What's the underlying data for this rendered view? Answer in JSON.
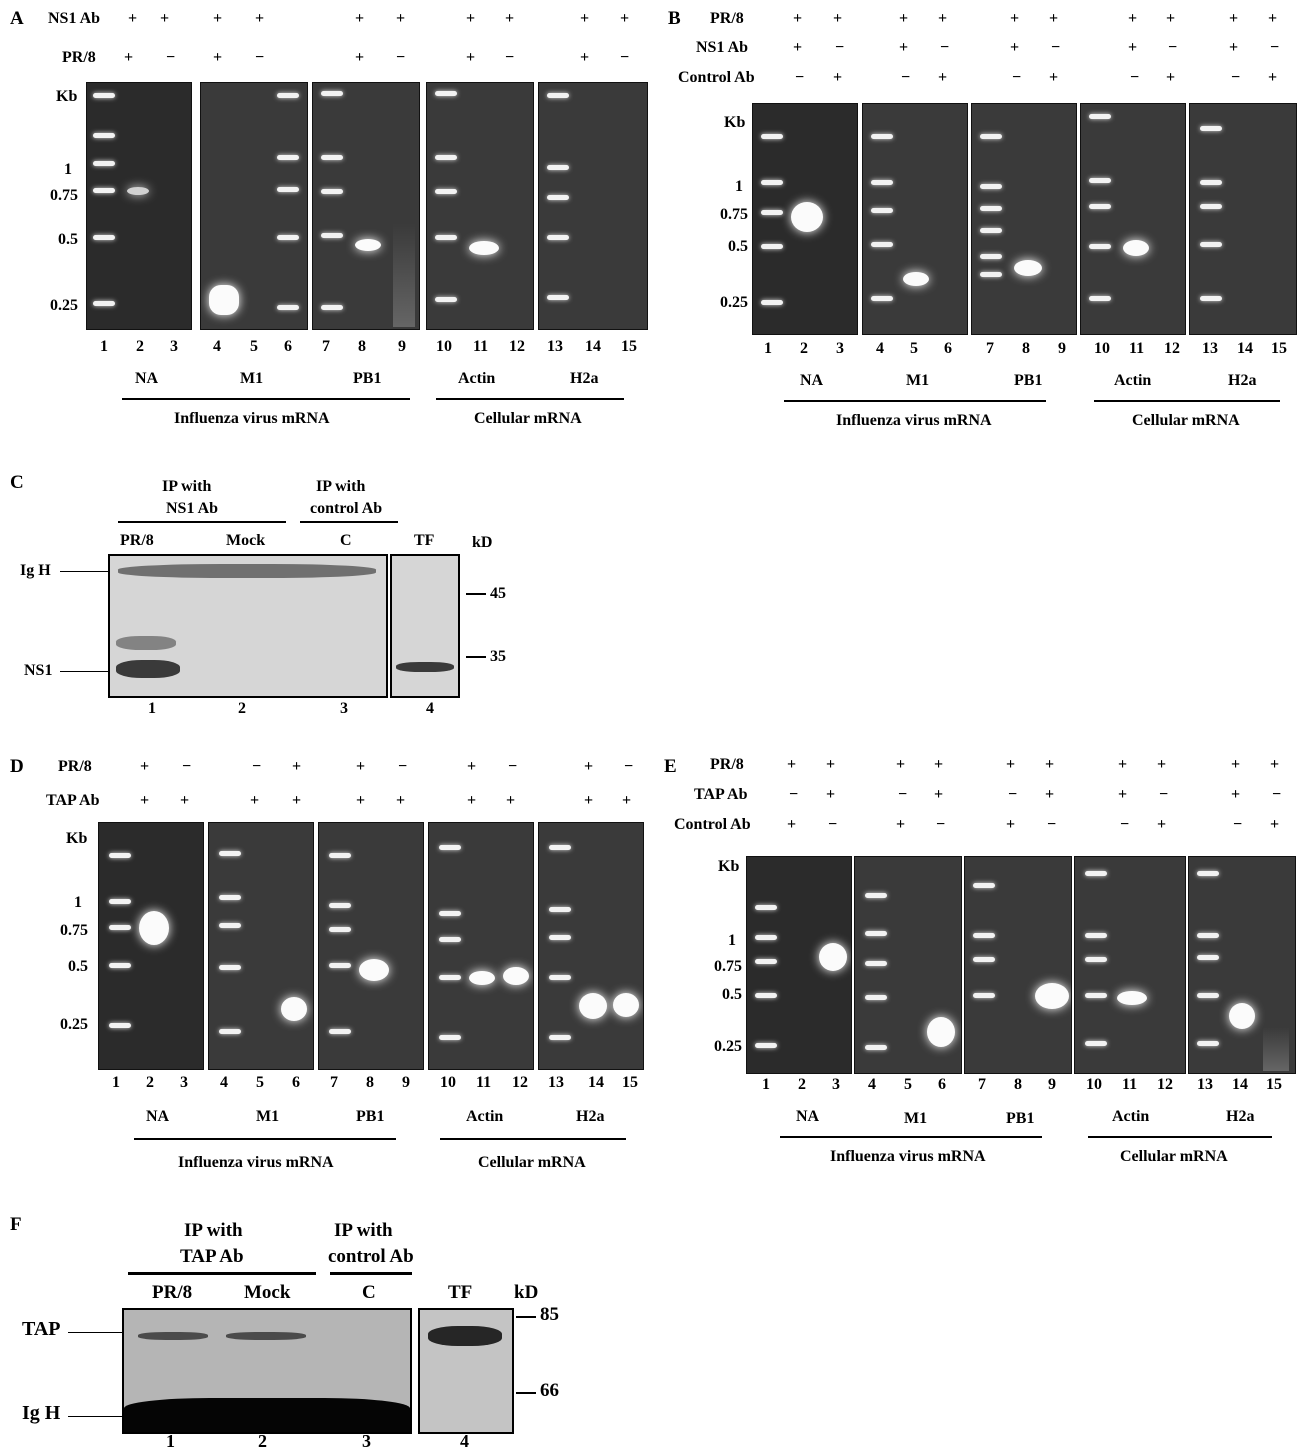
{
  "panelA": {
    "letter": "A",
    "row1_label": "NS1 Ab",
    "row1_signs": [
      "+",
      "+",
      "+",
      "+",
      "+",
      "+",
      "+",
      "+",
      "+",
      "+"
    ],
    "row2_label": "PR/8",
    "row2_signs": [
      "+",
      "−",
      "+",
      "−",
      "+",
      "−",
      "+",
      "−",
      "+",
      "−"
    ],
    "kb": "Kb",
    "sizes": [
      "1",
      "0.75",
      "0.5",
      "0.25"
    ],
    "lanes": [
      "1",
      "2",
      "3",
      "4",
      "5",
      "6",
      "7",
      "8",
      "9",
      "10",
      "11",
      "12",
      "13",
      "14",
      "15"
    ],
    "genes": [
      "NA",
      "M1",
      "PB1",
      "Actin",
      "H2a"
    ],
    "group1": "Influenza virus mRNA",
    "group2": "Cellular mRNA"
  },
  "panelB": {
    "letter": "B",
    "row1_label": "PR/8",
    "row1_signs": [
      "+",
      "+",
      "+",
      "+",
      "+",
      "+",
      "+",
      "+",
      "+",
      "+"
    ],
    "row2_label": "NS1 Ab",
    "row2_signs": [
      "+",
      "−",
      "+",
      "−",
      "+",
      "−",
      "+",
      "−",
      "+",
      "−"
    ],
    "row3_label": "Control Ab",
    "row3_signs": [
      "−",
      "+",
      "−",
      "+",
      "−",
      "+",
      "−",
      "+",
      "−",
      "+"
    ],
    "kb": "Kb",
    "sizes": [
      "1",
      "0.75",
      "0.5",
      "0.25"
    ],
    "lanes": [
      "1",
      "2",
      "3",
      "4",
      "5",
      "6",
      "7",
      "8",
      "9",
      "10",
      "11",
      "12",
      "13",
      "14",
      "15"
    ],
    "genes": [
      "NA",
      "M1",
      "PB1",
      "Actin",
      "H2a"
    ],
    "group1": "Influenza virus mRNA",
    "group2": "Cellular mRNA"
  },
  "panelC": {
    "letter": "C",
    "ip1": [
      "IP with",
      "NS1 Ab"
    ],
    "ip2": [
      "IP with",
      "control Ab"
    ],
    "cols": [
      "PR/8",
      "Mock",
      "C",
      "TF"
    ],
    "unit": "kD",
    "markers": [
      "45",
      "35"
    ],
    "bands": [
      "Ig H",
      "NS1"
    ],
    "lanes": [
      "1",
      "2",
      "3",
      "4"
    ]
  },
  "panelD": {
    "letter": "D",
    "row1_label": "PR/8",
    "row1_signs": [
      "+",
      "−",
      "−",
      "+",
      "+",
      "−",
      "+",
      "−",
      "+",
      "−"
    ],
    "row2_label": "TAP Ab",
    "row2_signs": [
      "+",
      "+",
      "+",
      "+",
      "+",
      "+",
      "+",
      "+",
      "+",
      "+"
    ],
    "kb": "Kb",
    "sizes": [
      "1",
      "0.75",
      "0.5",
      "0.25"
    ],
    "lanes": [
      "1",
      "2",
      "3",
      "4",
      "5",
      "6",
      "7",
      "8",
      "9",
      "10",
      "11",
      "12",
      "13",
      "14",
      "15"
    ],
    "genes": [
      "NA",
      "M1",
      "PB1",
      "Actin",
      "H2a"
    ],
    "group1": "Influenza virus mRNA",
    "group2": "Cellular mRNA"
  },
  "panelE": {
    "letter": "E",
    "row1_label": "PR/8",
    "row1_signs": [
      "+",
      "+",
      "+",
      "+",
      "+",
      "+",
      "+",
      "+",
      "+",
      "+"
    ],
    "row2_label": "TAP Ab",
    "row2_signs": [
      "−",
      "+",
      "−",
      "+",
      "−",
      "+",
      "+",
      "−",
      "+",
      "−"
    ],
    "row3_label": "Control Ab",
    "row3_signs": [
      "+",
      "−",
      "+",
      "−",
      "+",
      "−",
      "−",
      "+",
      "−",
      "+"
    ],
    "kb": "Kb",
    "sizes": [
      "1",
      "0.75",
      "0.5",
      "0.25"
    ],
    "lanes": [
      "1",
      "2",
      "3",
      "4",
      "5",
      "6",
      "7",
      "8",
      "9",
      "10",
      "11",
      "12",
      "13",
      "14",
      "15"
    ],
    "genes": [
      "NA",
      "M1",
      "PB1",
      "Actin",
      "H2a"
    ],
    "group1": "Influenza virus mRNA",
    "group2": "Cellular mRNA"
  },
  "panelF": {
    "letter": "F",
    "ip1": [
      "IP with",
      "TAP Ab"
    ],
    "ip2": [
      "IP with",
      "control Ab"
    ],
    "cols": [
      "PR/8",
      "Mock",
      "C",
      "TF"
    ],
    "unit": "kD",
    "markers": [
      "85",
      "66"
    ],
    "bands": [
      "TAP",
      "Ig H"
    ],
    "lanes": [
      "1",
      "2",
      "3",
      "4"
    ]
  }
}
